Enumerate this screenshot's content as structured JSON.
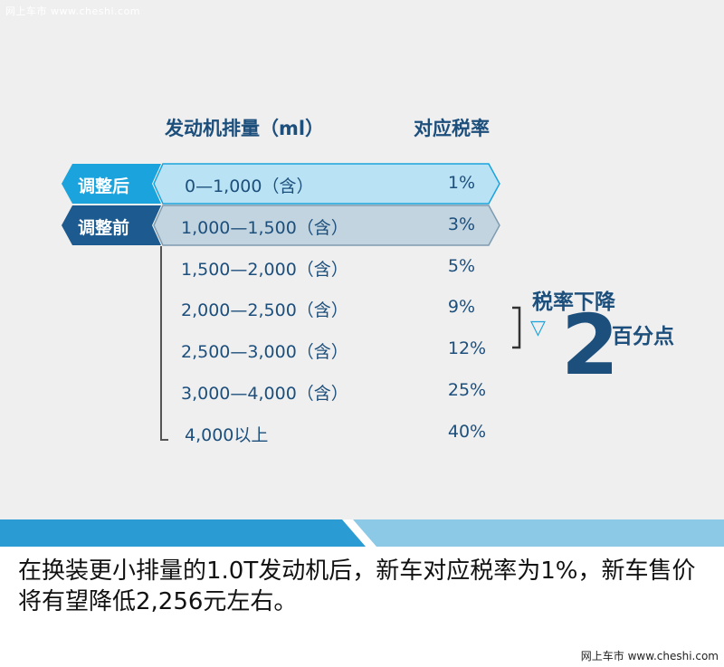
{
  "watermark_top": "网上车市 www.cheshi.com",
  "header": {
    "displacement": "发动机排量（ml）",
    "rate": "对应税率"
  },
  "tags": {
    "after": "调整后",
    "before": "调整前"
  },
  "rows": [
    {
      "range": "0—1,000（含）",
      "rate": "1%"
    },
    {
      "range": "1,000—1,500（含）",
      "rate": "3%"
    },
    {
      "range": "1,500—2,000（含）",
      "rate": "5%"
    },
    {
      "range": "2,000—2,500（含）",
      "rate": "9%"
    },
    {
      "range": "2,500—3,000（含）",
      "rate": "12%"
    },
    {
      "range": "3,000—4,000（含）",
      "rate": "25%"
    },
    {
      "range": "4,000以上",
      "rate": "40%"
    }
  ],
  "note": {
    "title": "税率下降",
    "number": "2",
    "unit": "百分点",
    "arrow": "▽"
  },
  "caption": "在换装更小排量的1.0T发动机后，新车对应税率为1%，新车售价将有望降低2,256元左右。",
  "watermark_bottom": "网上车市 www.cheshi.com",
  "colors": {
    "panel_bg": "#efefef",
    "text_blue": "#1d4f7c",
    "after_tag": "#1aa3dc",
    "after_bar": "#b9e3f4",
    "before_tag": "#1c5a8f",
    "before_bar": "#c2d4e0",
    "stripe_dark": "#2a9bd3",
    "stripe_light": "#8cc9e6"
  }
}
